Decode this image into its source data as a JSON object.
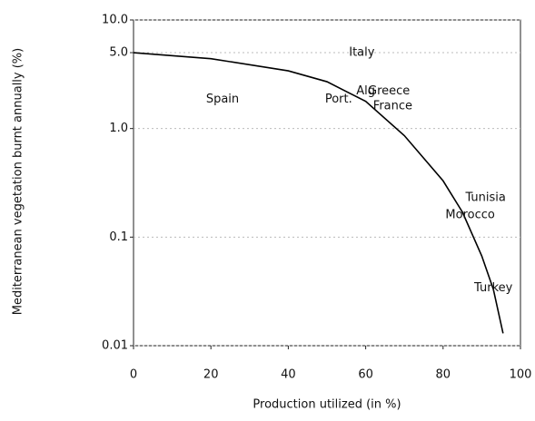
{
  "chart_data": {
    "type": "line",
    "x_label": "Production utilized (in %)",
    "y_label": "Mediterranean vegetation burnt annually (%)",
    "x": [
      0,
      20,
      40,
      50,
      60,
      70,
      80,
      85,
      90,
      93,
      95.5
    ],
    "series": [
      {
        "color": "#000000",
        "values": [
          5.0,
          4.4,
          3.4,
          2.7,
          1.78,
          0.86,
          0.33,
          0.17,
          0.067,
          0.033,
          0.013
        ]
      }
    ],
    "xlim": [
      0,
      100
    ],
    "xticks": [
      0,
      20,
      40,
      60,
      80,
      100
    ],
    "ylim": [
      0.01,
      10
    ],
    "log_y": true,
    "yticks": [
      {
        "value": 10,
        "label": "10.0"
      },
      {
        "value": 5,
        "label": "5.0"
      },
      {
        "value": 1,
        "label": "1.0"
      },
      0.1,
      0.01
    ],
    "grid": true,
    "annotations": [
      {
        "text": "Italy",
        "x": 59,
        "y": 5.0
      },
      {
        "text": "Spain",
        "x": 23,
        "y": 1.85
      },
      {
        "text": "Port.",
        "x": 53,
        "y": 1.85
      },
      {
        "text": "Alg",
        "x": 60,
        "y": 2.2
      },
      {
        "text": "Greece",
        "x": 66,
        "y": 2.2
      },
      {
        "text": "France",
        "x": 67,
        "y": 1.6
      },
      {
        "text": "Tunisia",
        "x": 91,
        "y": 0.23
      },
      {
        "text": "Morocco",
        "x": 87,
        "y": 0.16
      },
      {
        "text": "Turkey",
        "x": 93,
        "y": 0.034
      }
    ]
  }
}
